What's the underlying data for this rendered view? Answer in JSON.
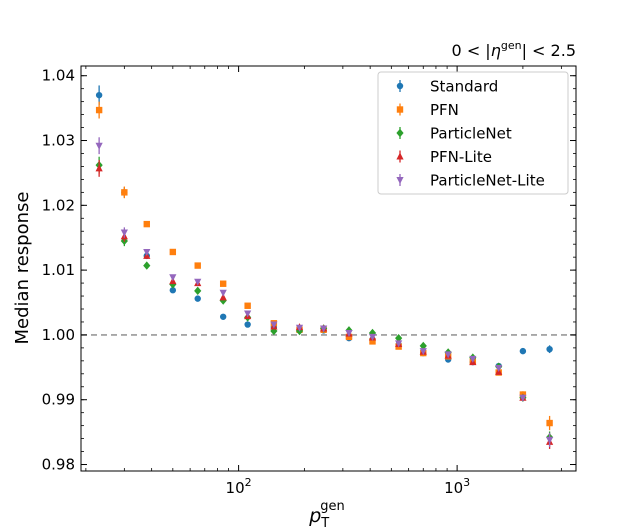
{
  "chart_data": {
    "type": "scatter",
    "annotation": "0 < |η^gen| < 2.5",
    "xlabel": "p_T^gen",
    "ylabel": "Median response",
    "xscale": "log",
    "xlim": [
      19,
      3500
    ],
    "ylim": [
      0.979,
      1.0415
    ],
    "xticks": [
      {
        "value": 100,
        "label": "10^2"
      },
      {
        "value": 1000,
        "label": "10^3"
      }
    ],
    "yticks": [
      0.98,
      0.99,
      1.0,
      1.01,
      1.02,
      1.03,
      1.04
    ],
    "ytick_labels": [
      "0.98",
      "0.99",
      "1.00",
      "1.01",
      "1.02",
      "1.03",
      "1.04"
    ],
    "reference_line": 1.0,
    "grid": false,
    "legend_position": "top-right",
    "x": [
      23,
      30,
      38,
      50,
      65,
      85,
      110,
      145,
      190,
      245,
      320,
      410,
      540,
      700,
      910,
      1180,
      1550,
      2000,
      2650
    ],
    "series": [
      {
        "name": "Standard",
        "color": "#1f77b4",
        "marker": "circle",
        "offset": 1.0,
        "values": [
          1.037,
          1.022,
          1.0122,
          1.0069,
          1.0056,
          1.0028,
          1.0016,
          1.0012,
          1.0007,
          1.0007,
          0.9995,
          0.9993,
          0.9985,
          0.9972,
          0.9962,
          0.9958,
          0.9952,
          0.9975,
          0.9978
        ],
        "errors": [
          0.0015,
          0.0008,
          0.0004,
          0.0004,
          0.0003,
          0.0002,
          0.0003,
          0.0003,
          0.0002,
          0.0002,
          0.0002,
          0.0003,
          0.0003,
          0.0003,
          0.0003,
          0.0004,
          0.0004,
          0.0003,
          0.0006
        ]
      },
      {
        "name": "PFN",
        "color": "#ff7f0e",
        "marker": "square",
        "offset": 1.0,
        "values": [
          1.0347,
          1.022,
          1.0171,
          1.0128,
          1.0107,
          1.0079,
          1.0045,
          1.0018,
          1.0008,
          1.0008,
          0.9997,
          0.999,
          0.9982,
          0.9972,
          0.9967,
          0.9959,
          0.9942,
          0.9908,
          0.9864
        ],
        "errors": [
          0.0013,
          0.0009,
          0.0004,
          0.0003,
          0.0003,
          0.0003,
          0.0003,
          0.0002,
          0.0002,
          0.0002,
          0.0002,
          0.0002,
          0.0003,
          0.0003,
          0.0003,
          0.0003,
          0.0004,
          0.0005,
          0.0011
        ]
      },
      {
        "name": "ParticleNet",
        "color": "#2ca02c",
        "marker": "diamond",
        "offset": 1.0,
        "values": [
          1.0262,
          1.0145,
          1.0107,
          1.0078,
          1.0068,
          1.0053,
          1.0027,
          1.0006,
          1.0006,
          1.001,
          1.0007,
          1.0003,
          0.9995,
          0.9983,
          0.9973,
          0.9965,
          0.9951,
          0.9903,
          0.9842
        ],
        "errors": [
          0.0013,
          0.0008,
          0.0005,
          0.0004,
          0.0003,
          0.0003,
          0.0003,
          0.0002,
          0.0002,
          0.0002,
          0.0002,
          0.0002,
          0.0003,
          0.0003,
          0.0003,
          0.0003,
          0.0004,
          0.0005,
          0.0009
        ]
      },
      {
        "name": "PFN-Lite",
        "color": "#d62728",
        "marker": "triangle-up",
        "offset": 1.0,
        "values": [
          1.0257,
          1.0152,
          1.0122,
          1.0083,
          1.008,
          1.0058,
          1.0029,
          1.0013,
          1.0012,
          1.001,
          1.0002,
          0.9996,
          0.9986,
          0.9974,
          0.9968,
          0.9958,
          0.9943,
          0.9903,
          0.9835
        ],
        "errors": [
          0.0013,
          0.0008,
          0.0004,
          0.0004,
          0.0003,
          0.0003,
          0.0003,
          0.0002,
          0.0002,
          0.0002,
          0.0002,
          0.0002,
          0.0003,
          0.0003,
          0.0003,
          0.0003,
          0.0004,
          0.0005,
          0.0011
        ]
      },
      {
        "name": "ParticleNet-Lite",
        "color": "#9467bd",
        "marker": "triangle-down",
        "offset": 1.0,
        "values": [
          1.0292,
          1.0158,
          1.0128,
          1.0089,
          1.0082,
          1.0065,
          1.0033,
          1.0016,
          1.0011,
          1.001,
          1.0003,
          0.9997,
          0.9987,
          0.9975,
          0.997,
          0.9963,
          0.9949,
          0.9903,
          0.9838
        ],
        "errors": [
          0.0013,
          0.0008,
          0.0004,
          0.0004,
          0.0003,
          0.0003,
          0.0003,
          0.0002,
          0.0002,
          0.0002,
          0.0002,
          0.0002,
          0.0003,
          0.0003,
          0.0003,
          0.0003,
          0.0004,
          0.0005,
          0.0011
        ]
      }
    ]
  }
}
